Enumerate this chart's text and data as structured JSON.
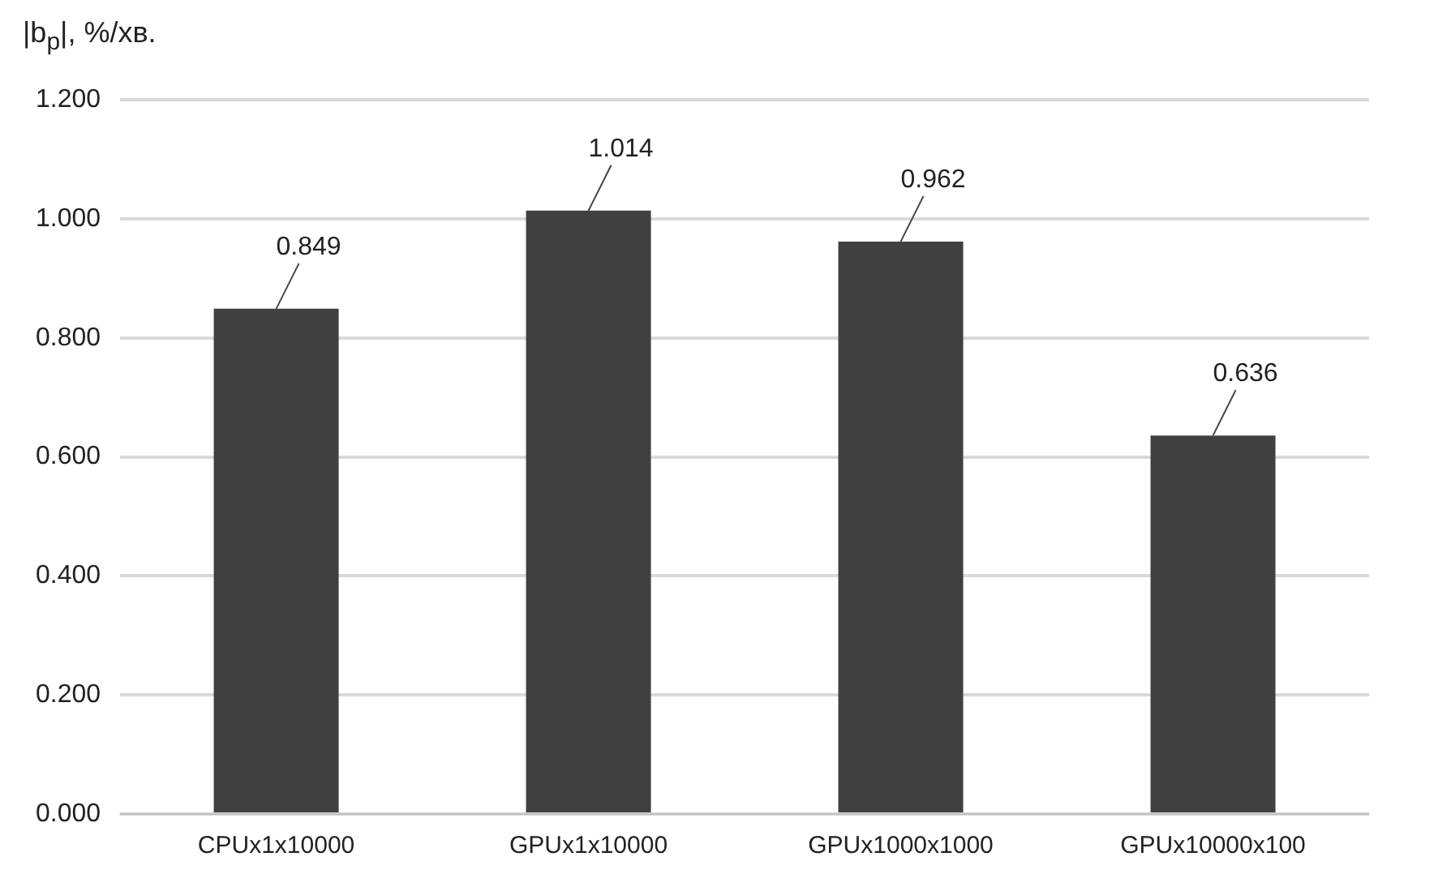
{
  "chart_data": {
    "type": "bar",
    "ylabel": "|b$_{p}$|, %/хв.",
    "categories": [
      "CPUx1x10000",
      "GPUx1x10000",
      "GPUx1000x1000",
      "GPUx10000x100"
    ],
    "values": [
      0.849,
      1.014,
      0.962,
      0.636
    ],
    "color": "#404040",
    "ylim": [
      0,
      1.2
    ],
    "yticks": [
      {
        "value": 0,
        "label": "0.000"
      },
      {
        "value": 0.2,
        "label": "0.200"
      },
      {
        "value": 0.4,
        "label": "0.400"
      },
      {
        "value": 0.6,
        "label": "0.600"
      },
      {
        "value": 0.8,
        "label": "0.800"
      },
      {
        "value": 1,
        "label": "1.000"
      },
      {
        "value": 1.2,
        "label": "1.200"
      }
    ],
    "grid": "y",
    "data_labels": true
  }
}
